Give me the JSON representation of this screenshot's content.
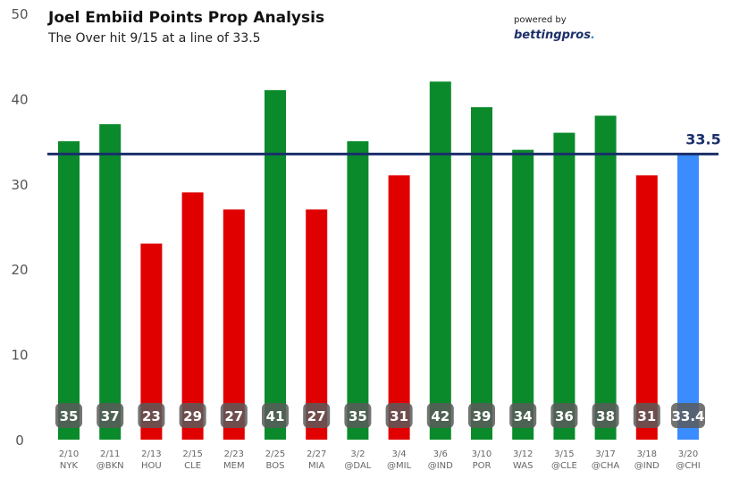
{
  "header": {
    "title": "Joel Embiid Points Prop Analysis",
    "subtitle": "The Over hit 9/15 at a line of 33.5",
    "powered_by": "powered by",
    "logo_main": "bettingpros",
    "logo_suffix": "."
  },
  "colors": {
    "over": "#0a8a2a",
    "under": "#e00000",
    "projection": "#3b8cff",
    "line": "#1a2f6a",
    "label_badge": "#5a5a5a"
  },
  "chart_data": {
    "type": "bar",
    "title": "Joel Embiid Points Prop Analysis",
    "subtitle": "The Over hit 9/15 at a line of 33.5",
    "xlabel": "",
    "ylabel": "",
    "ylim": [
      0,
      50
    ],
    "yticks": [
      0,
      10,
      20,
      30,
      40,
      50
    ],
    "grid": false,
    "prop_line": 33.5,
    "prop_line_label": "33.5",
    "categories": [
      {
        "date": "2/10",
        "opp": "NYK"
      },
      {
        "date": "2/11",
        "opp": "@BKN"
      },
      {
        "date": "2/13",
        "opp": "HOU"
      },
      {
        "date": "2/15",
        "opp": "CLE"
      },
      {
        "date": "2/23",
        "opp": "MEM"
      },
      {
        "date": "2/25",
        "opp": "BOS"
      },
      {
        "date": "2/27",
        "opp": "MIA"
      },
      {
        "date": "3/2",
        "opp": "@DAL"
      },
      {
        "date": "3/4",
        "opp": "@MIL"
      },
      {
        "date": "3/6",
        "opp": "@IND"
      },
      {
        "date": "3/10",
        "opp": "POR"
      },
      {
        "date": "3/12",
        "opp": "WAS"
      },
      {
        "date": "3/15",
        "opp": "@CLE"
      },
      {
        "date": "3/17",
        "opp": "@CHA"
      },
      {
        "date": "3/18",
        "opp": "@IND"
      },
      {
        "date": "3/20",
        "opp": "@CHI"
      }
    ],
    "values": [
      35,
      37,
      23,
      29,
      27,
      41,
      27,
      35,
      31,
      42,
      39,
      34,
      36,
      38,
      31,
      33.4
    ],
    "value_labels": [
      "35",
      "37",
      "23",
      "29",
      "27",
      "41",
      "27",
      "35",
      "31",
      "42",
      "39",
      "34",
      "36",
      "38",
      "31",
      "33.4"
    ],
    "result": [
      "over",
      "over",
      "under",
      "under",
      "under",
      "over",
      "under",
      "over",
      "under",
      "over",
      "over",
      "over",
      "over",
      "over",
      "under",
      "projection"
    ]
  }
}
